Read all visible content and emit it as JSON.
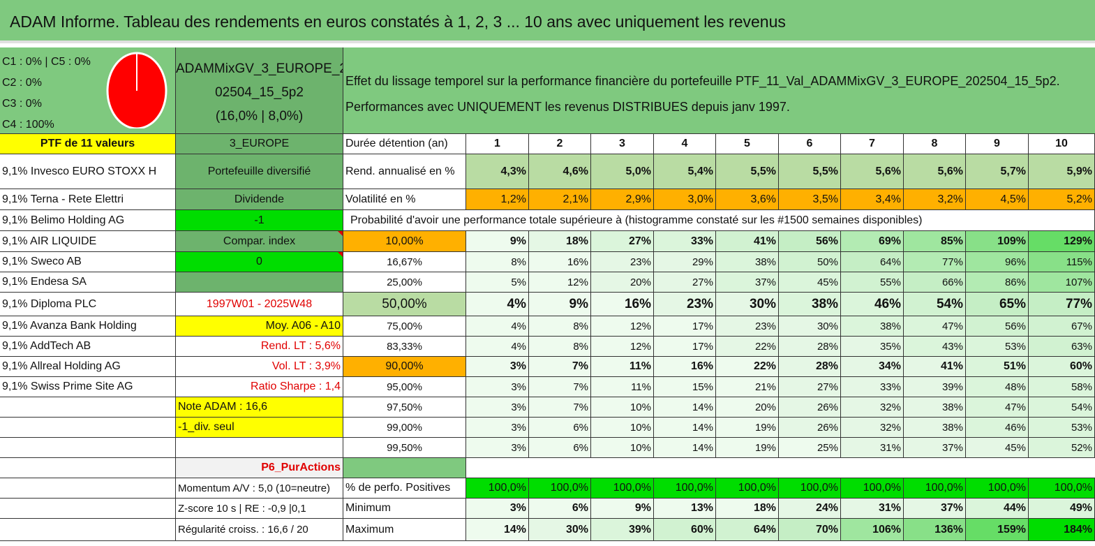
{
  "header": {
    "title": "ADAM Informe. Tableau des rendements en euros constatés à 1, 2, 3 ... 10 ans avec uniquement les revenus"
  },
  "allocation": {
    "lines": [
      "C1 : 0% | C5 : 0%",
      "C2 : 0%",
      "C3 : 0%",
      "C4 : 100%"
    ]
  },
  "portfolio": {
    "name_line1": "ADAMMixGV_3_EUROPE_2",
    "name_line2": "02504_15_5p2",
    "name_line3": "(16,0% | 8,0%)",
    "description_line1": "Effet du lissage temporel sur la performance financière du portefeuille PTF_11_Val_ADAMMixGV_3_EUROPE_202504_15_5p2.",
    "description_line2": "Performances avec UNIQUEMENT les revenus DISTRIBUES depuis janv 1997."
  },
  "table": {
    "ptf_label": "PTF de 11 valeurs",
    "zone": "3_EUROPE",
    "duration_label": "Durée détention (an)",
    "years": [
      "1",
      "2",
      "3",
      "4",
      "5",
      "6",
      "7",
      "8",
      "9",
      "10"
    ],
    "holdings": [
      "9,1% Invesco EURO STOXX H",
      "9,1% Terna - Rete Elettri",
      "9,1% Belimo Holding AG",
      "9,1% AIR LIQUIDE",
      "9,1% Sweco AB",
      "9,1% Endesa SA",
      "9,1% Diploma PLC",
      "9,1% Avanza Bank Holding",
      "9,1% AddTech AB",
      "9,1% Allreal Holding AG",
      "9,1% Swiss Prime Site AG"
    ],
    "info": {
      "diversified": "Portefeuille diversifié",
      "dividend": "Dividende",
      "dividend_value": "-1",
      "compar_index": "Compar. index",
      "compar_value": "0",
      "period": "1997W01 - 2025W48",
      "average": "Moy. A06 - A10",
      "rend_lt": "Rend. LT : 5,6%",
      "vol_lt": "Vol. LT : 3,9%",
      "sharpe": "Ratio Sharpe : 1,4",
      "note": "Note ADAM : 16,6",
      "div_only": "-1_div. seul",
      "strategy": "P6_PurActions",
      "momentum": "Momentum A/V : 5,0 (10=neutre)",
      "zscore": "Z-score 10 s | RE : -0,9 |0,1",
      "regularity": "Régularité croiss. : 16,6 / 20"
    },
    "rend_label": "Rend. annualisé en %",
    "rend": [
      "4,3%",
      "4,6%",
      "5,0%",
      "5,4%",
      "5,5%",
      "5,5%",
      "5,6%",
      "5,6%",
      "5,7%",
      "5,9%"
    ],
    "vol_label": "Volatilité en %",
    "vol": [
      "1,2%",
      "2,1%",
      "2,9%",
      "3,0%",
      "3,6%",
      "3,5%",
      "3,4%",
      "3,2%",
      "4,5%",
      "5,2%"
    ],
    "prob_title": "Probabilité d'avoir une performance totale supérieure à (histogramme constaté sur les #1500 semaines disponibles)",
    "quantiles": [
      {
        "label": "10,00%",
        "values": [
          "9%",
          "18%",
          "27%",
          "33%",
          "41%",
          "56%",
          "69%",
          "85%",
          "109%",
          "129%"
        ]
      },
      {
        "label": "16,67%",
        "values": [
          "8%",
          "16%",
          "23%",
          "29%",
          "38%",
          "50%",
          "64%",
          "77%",
          "96%",
          "115%"
        ]
      },
      {
        "label": "25,00%",
        "values": [
          "5%",
          "12%",
          "20%",
          "27%",
          "37%",
          "45%",
          "55%",
          "66%",
          "86%",
          "107%"
        ]
      },
      {
        "label": "50,00%",
        "values": [
          "4%",
          "9%",
          "16%",
          "23%",
          "30%",
          "38%",
          "46%",
          "54%",
          "65%",
          "77%"
        ]
      },
      {
        "label": "75,00%",
        "values": [
          "4%",
          "8%",
          "12%",
          "17%",
          "23%",
          "30%",
          "38%",
          "47%",
          "56%",
          "67%"
        ]
      },
      {
        "label": "83,33%",
        "values": [
          "4%",
          "8%",
          "12%",
          "17%",
          "22%",
          "28%",
          "35%",
          "43%",
          "53%",
          "63%"
        ]
      },
      {
        "label": "90,00%",
        "values": [
          "3%",
          "7%",
          "11%",
          "16%",
          "22%",
          "28%",
          "34%",
          "41%",
          "51%",
          "60%"
        ]
      },
      {
        "label": "95,00%",
        "values": [
          "3%",
          "7%",
          "11%",
          "15%",
          "21%",
          "27%",
          "33%",
          "39%",
          "48%",
          "58%"
        ]
      },
      {
        "label": "97,50%",
        "values": [
          "3%",
          "7%",
          "10%",
          "14%",
          "20%",
          "26%",
          "32%",
          "38%",
          "47%",
          "54%"
        ]
      },
      {
        "label": "99,00%",
        "values": [
          "3%",
          "6%",
          "10%",
          "14%",
          "19%",
          "26%",
          "32%",
          "38%",
          "46%",
          "53%"
        ]
      },
      {
        "label": "99,50%",
        "values": [
          "3%",
          "6%",
          "10%",
          "14%",
          "19%",
          "25%",
          "31%",
          "37%",
          "45%",
          "52%"
        ]
      }
    ],
    "positive_label": "% de perfo. Positives",
    "positive": [
      "100,0%",
      "100,0%",
      "100,0%",
      "100,0%",
      "100,0%",
      "100,0%",
      "100,0%",
      "100,0%",
      "100,0%",
      "100,0%"
    ],
    "min_label": "Minimum",
    "min": [
      "3%",
      "6%",
      "9%",
      "13%",
      "18%",
      "24%",
      "31%",
      "37%",
      "44%",
      "49%"
    ],
    "max_label": "Maximum",
    "max": [
      "14%",
      "30%",
      "39%",
      "60%",
      "64%",
      "70%",
      "106%",
      "136%",
      "159%",
      "184%"
    ]
  },
  "colors": {
    "header_green": "#7fc97f",
    "bright_green": "#00dd00",
    "yellow": "#ffff00",
    "orange": "#ffb000",
    "red": "#e00000"
  }
}
